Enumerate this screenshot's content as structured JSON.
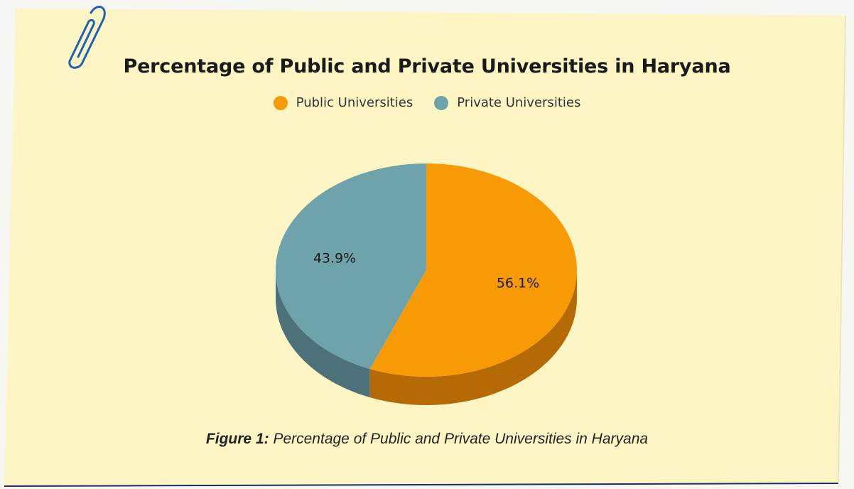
{
  "card": {
    "background": "#fdf6c4",
    "border_color": "#1e2a6b"
  },
  "chart_data": {
    "type": "pie",
    "title": "Percentage of Public and Private Universities in Haryana",
    "categories": [
      "Public Universities",
      "Private Universities"
    ],
    "values": [
      56.1,
      43.9
    ],
    "data_labels": [
      "56.1%",
      "43.9%"
    ],
    "colors": [
      "#f79a06",
      "#6fa3ab"
    ],
    "shadow_colors": [
      "#b56a06",
      "#4d7179"
    ],
    "legend_position": "top",
    "style": "3d-pie"
  },
  "caption": {
    "label": "Figure 1:",
    "text": " Percentage of Public and Private Universities in Haryana"
  },
  "icons": {
    "clip": "paperclip-icon",
    "clip_color": "#1f5fb4"
  }
}
